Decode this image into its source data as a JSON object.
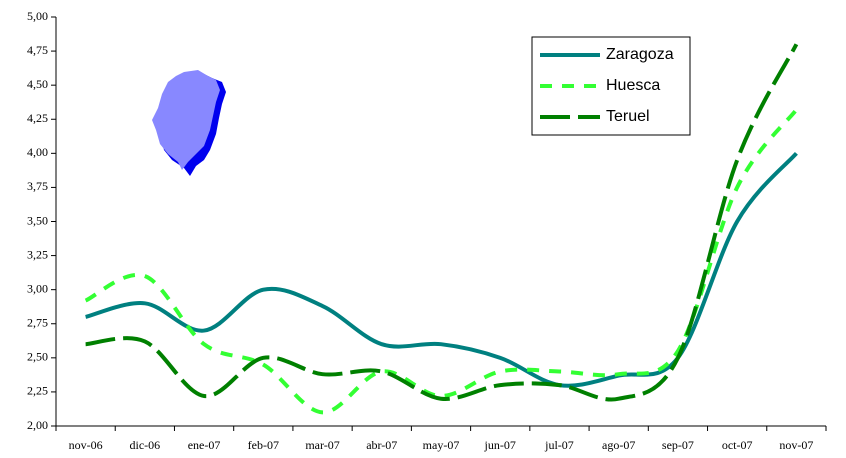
{
  "chart_data": {
    "type": "line",
    "categories": [
      "nov-06",
      "dic-06",
      "ene-07",
      "feb-07",
      "mar-07",
      "abr-07",
      "may-07",
      "jun-07",
      "jul-07",
      "ago-07",
      "sep-07",
      "oct-07",
      "nov-07"
    ],
    "series": [
      {
        "name": "Zaragoza",
        "color": "#008080",
        "dash": "solid",
        "values": [
          2.8,
          2.9,
          2.7,
          3.0,
          2.88,
          2.6,
          2.6,
          2.5,
          2.3,
          2.37,
          2.5,
          3.5,
          4.0
        ]
      },
      {
        "name": "Huesca",
        "color": "#33ff33",
        "dash": "short",
        "values": [
          2.92,
          3.1,
          2.6,
          2.45,
          2.1,
          2.4,
          2.22,
          2.4,
          2.4,
          2.38,
          2.55,
          3.75,
          4.32
        ]
      },
      {
        "name": "Teruel",
        "color": "#008000",
        "dash": "long",
        "values": [
          2.6,
          2.62,
          2.22,
          2.5,
          2.38,
          2.4,
          2.2,
          2.3,
          2.3,
          2.2,
          2.5,
          3.95,
          4.8
        ]
      }
    ],
    "ylim": [
      2,
      5
    ],
    "yticks": [
      {
        "value": 2,
        "label": "2,00"
      },
      {
        "value": 2.25,
        "label": "2,25"
      },
      {
        "value": 2.5,
        "label": "2,50"
      },
      {
        "value": 2.75,
        "label": "2,75"
      },
      {
        "value": 3,
        "label": "3,00"
      },
      {
        "value": 3.25,
        "label": "3,25"
      },
      {
        "value": 3.5,
        "label": "3,50"
      },
      {
        "value": 3.75,
        "label": "3,75"
      },
      {
        "value": 4,
        "label": "4,00"
      },
      {
        "value": 4.25,
        "label": "4,25"
      },
      {
        "value": 4.5,
        "label": "4,50"
      },
      {
        "value": 4.75,
        "label": "4,75"
      },
      {
        "value": 5,
        "label": "5,00"
      }
    ],
    "grid": false,
    "smooth": true,
    "legend": "upper right"
  }
}
